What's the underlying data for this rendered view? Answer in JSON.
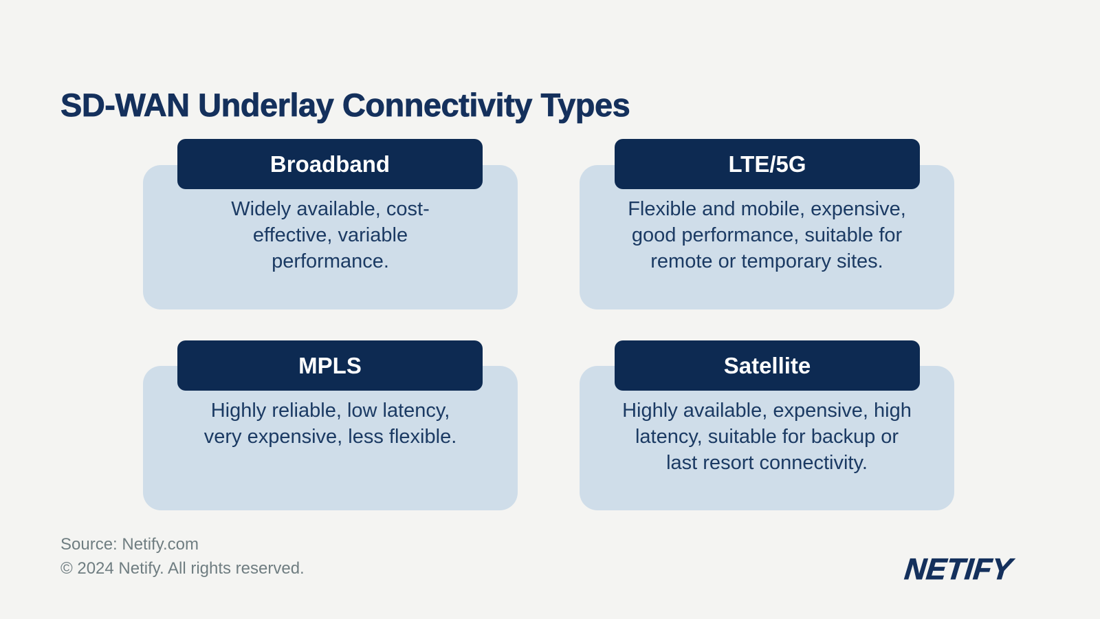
{
  "title": "SD-WAN Underlay Connectivity Types",
  "colors": {
    "background": "#f4f4f2",
    "pill_navy": "#0d2a52",
    "card_blue": "#cfdde9",
    "title_navy": "#14305c",
    "body_text_navy": "#1b3a63",
    "footer_gray": "#6f7d81"
  },
  "cards": [
    {
      "label": "Broadband",
      "description": "Widely available, cost-\neffective, variable\nperformance."
    },
    {
      "label": "LTE/5G",
      "description": "Flexible and mobile, expensive,\ngood performance, suitable for\nremote or temporary sites."
    },
    {
      "label": "MPLS",
      "description": "Highly reliable, low latency,\nvery expensive, less flexible."
    },
    {
      "label": "Satellite",
      "description": "Highly available, expensive, high\nlatency, suitable for backup or\nlast resort connectivity."
    }
  ],
  "footer": {
    "source": "Source: Netify.com",
    "copyright": "© 2024 Netify. All rights reserved.",
    "logo": "NETIFY"
  }
}
